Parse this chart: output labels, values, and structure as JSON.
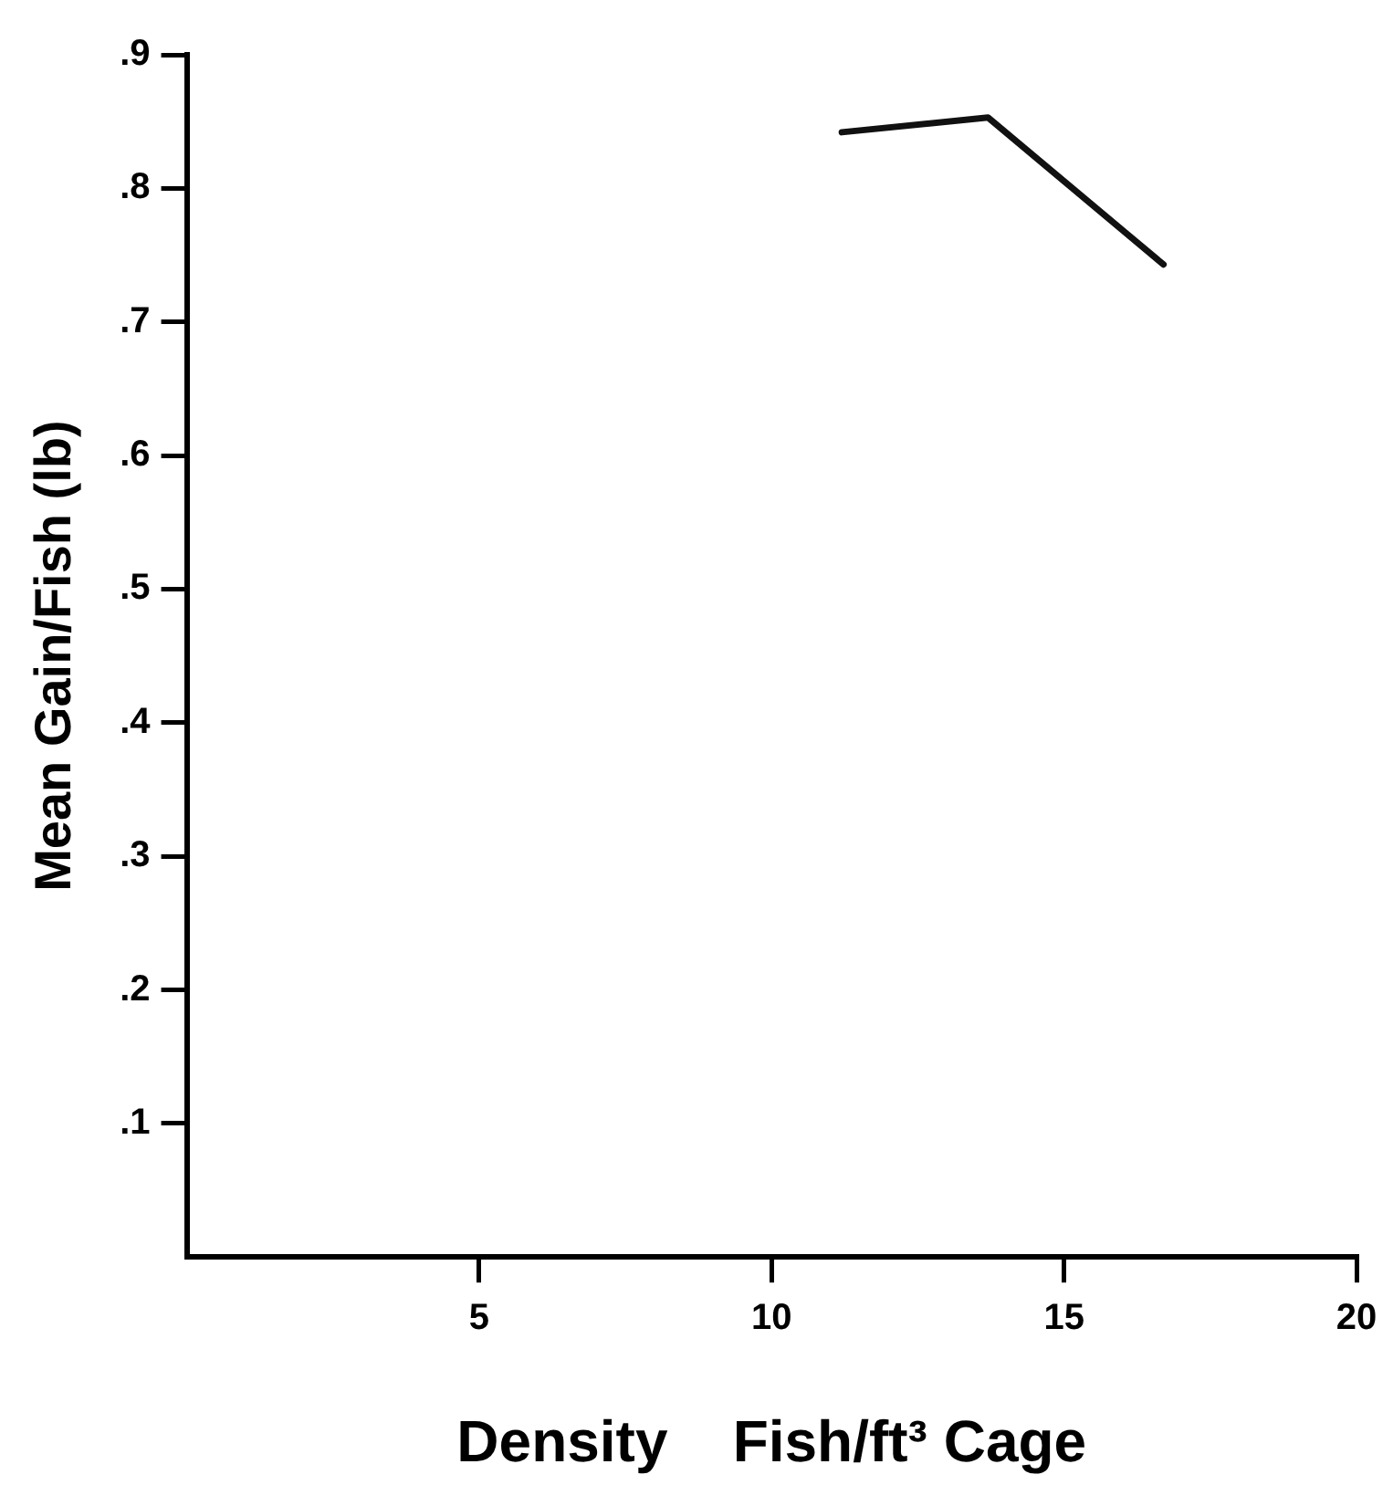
{
  "chart_data": {
    "type": "line",
    "xlabel": "Density    Fish/ft³ Cage",
    "ylabel": "Mean Gain/Fish (lb)",
    "x": [
      11.2,
      13.7,
      16.7
    ],
    "values": [
      0.842,
      0.853,
      0.743
    ],
    "color": "#111111",
    "xlim": [
      0,
      20
    ],
    "xticks": [
      5,
      10,
      15,
      20
    ],
    "ylim": [
      0,
      0.9
    ],
    "yticks": [
      {
        "value": 0.1,
        "label": ".1"
      },
      {
        "value": 0.2,
        "label": ".2"
      },
      {
        "value": 0.3,
        "label": ".3"
      },
      {
        "value": 0.4,
        "label": ".4"
      },
      {
        "value": 0.5,
        "label": ".5"
      },
      {
        "value": 0.6,
        "label": ".6"
      },
      {
        "value": 0.7,
        "label": ".7"
      },
      {
        "value": 0.8,
        "label": ".8"
      },
      {
        "value": 0.9,
        "label": ".9"
      }
    ],
    "grid": false,
    "legend": false,
    "marker": "none",
    "line_style": "solid"
  }
}
